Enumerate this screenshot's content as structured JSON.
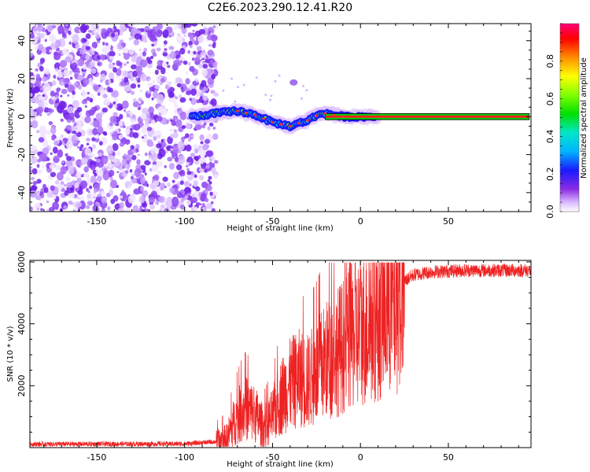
{
  "title": "C2E6.2023.290.12.41.R20",
  "chart_data": [
    {
      "type": "heatmap",
      "xlabel": "Height of straight line (km)",
      "ylabel": "Frequency (Hz)",
      "xlim": [
        -188,
        97
      ],
      "ylim": [
        -50,
        49
      ],
      "xticks": [
        -150,
        -100,
        -50,
        0,
        50
      ],
      "yticks": [
        -40,
        -20,
        0,
        20,
        40
      ],
      "colorbar": {
        "label": "Normalized spectral amplitude",
        "ticks": [
          0.0,
          0.2,
          0.4,
          0.6,
          0.8
        ],
        "range": [
          0,
          1
        ]
      },
      "noise_region_x": [
        -188,
        -82
      ],
      "signal_track": [
        {
          "x": -95,
          "y": 0
        },
        {
          "x": -80,
          "y": 2
        },
        {
          "x": -70,
          "y": 3
        },
        {
          "x": -60,
          "y": 1
        },
        {
          "x": -50,
          "y": -3
        },
        {
          "x": -40,
          "y": -5
        },
        {
          "x": -30,
          "y": -2
        },
        {
          "x": -22,
          "y": 2
        },
        {
          "x": -10,
          "y": 0
        },
        {
          "x": 0,
          "y": 0
        },
        {
          "x": 10,
          "y": 0
        },
        {
          "x": 50,
          "y": 0
        },
        {
          "x": 96,
          "y": 0
        }
      ]
    },
    {
      "type": "line",
      "xlabel": "Height of straight line (km)",
      "ylabel": "SNR (10 * v/v)",
      "xlim": [
        -188,
        97
      ],
      "ylim": [
        0,
        6050
      ],
      "xticks": [
        -150,
        -100,
        -50,
        0,
        50
      ],
      "yticks": [
        2000,
        4000,
        6000
      ],
      "series": [
        {
          "color": "#ee2222",
          "points": [
            {
              "x": -188,
              "y": 120
            },
            {
              "x": -100,
              "y": 130
            },
            {
              "x": -82,
              "y": 200
            },
            {
              "x": -76,
              "y": 350
            },
            {
              "x": -72,
              "y": 900
            },
            {
              "x": -66,
              "y": 1400
            },
            {
              "x": -60,
              "y": 1200
            },
            {
              "x": -55,
              "y": 700
            },
            {
              "x": -50,
              "y": 1100
            },
            {
              "x": -45,
              "y": 1800
            },
            {
              "x": -40,
              "y": 2200
            },
            {
              "x": -35,
              "y": 2400
            },
            {
              "x": -30,
              "y": 2300
            },
            {
              "x": -25,
              "y": 2600
            },
            {
              "x": -20,
              "y": 3000
            },
            {
              "x": -15,
              "y": 3200
            },
            {
              "x": -10,
              "y": 3500
            },
            {
              "x": -5,
              "y": 3800
            },
            {
              "x": 0,
              "y": 4000
            },
            {
              "x": 5,
              "y": 4200
            },
            {
              "x": 10,
              "y": 4500
            },
            {
              "x": 15,
              "y": 4800
            },
            {
              "x": 20,
              "y": 5100
            },
            {
              "x": 25,
              "y": 5400
            },
            {
              "x": 30,
              "y": 5600
            },
            {
              "x": 40,
              "y": 5700
            },
            {
              "x": 60,
              "y": 5750
            },
            {
              "x": 97,
              "y": 5750
            }
          ]
        }
      ]
    }
  ]
}
